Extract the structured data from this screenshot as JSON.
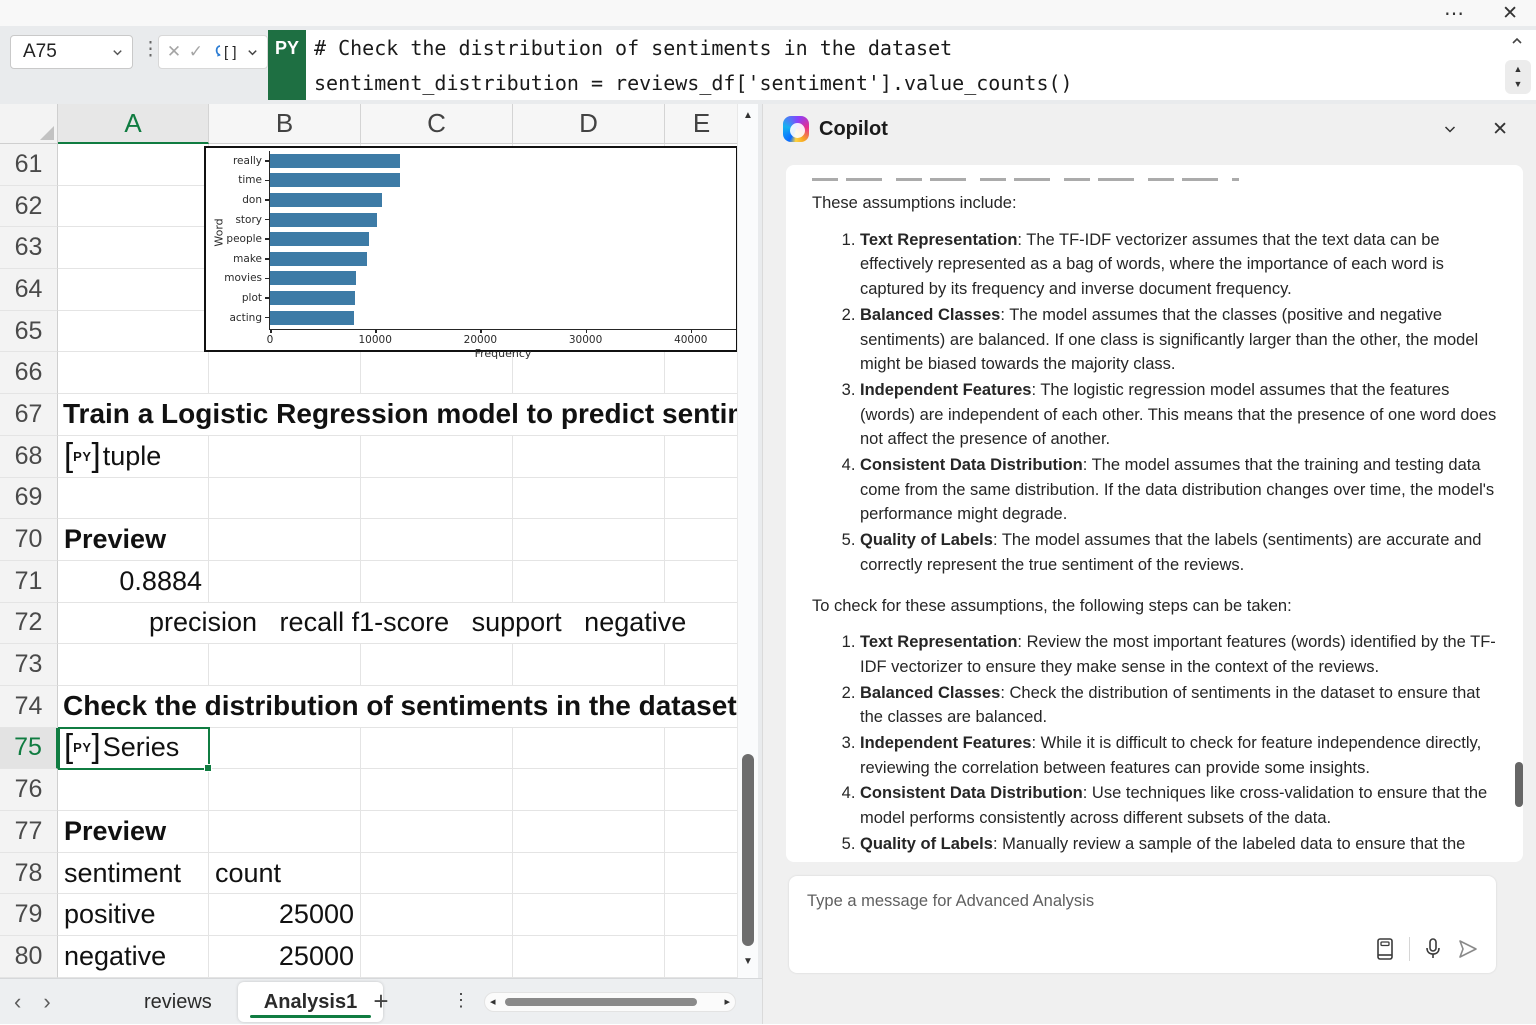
{
  "titlebar": {
    "more_icon": "⋯",
    "close_icon": "✕"
  },
  "formula_bar": {
    "name_box_value": "A75",
    "cancel_icon": "✕",
    "enter_icon": "✓",
    "language_badge": "PY",
    "code_lines": [
      "# Check the distribution of sentiments in the dataset",
      "sentiment_distribution = reviews_df['sentiment'].value_counts()"
    ]
  },
  "grid": {
    "column_headers": [
      "A",
      "B",
      "C",
      "D",
      "E"
    ],
    "selected_column": "A",
    "selected_row": 75,
    "selected_cell": "A75",
    "py_label": "PY",
    "rows": [
      {
        "n": 61
      },
      {
        "n": 62
      },
      {
        "n": 63
      },
      {
        "n": 64
      },
      {
        "n": 65
      },
      {
        "n": 66
      },
      {
        "n": 67,
        "overflow": {
          "text": "Train a Logistic Regression model to predict sentiments",
          "bold": true,
          "left": 63
        }
      },
      {
        "n": 68,
        "a": {
          "text": "tuple",
          "py": true
        }
      },
      {
        "n": 69
      },
      {
        "n": 70,
        "a": {
          "text": "Preview",
          "bold": true
        }
      },
      {
        "n": 71,
        "a": {
          "text": "0.8884",
          "align": "right"
        }
      },
      {
        "n": 72,
        "overflow": {
          "text": "precision   recall f1-score   support   negative",
          "bold": false,
          "left": 149
        }
      },
      {
        "n": 73
      },
      {
        "n": 74,
        "overflow": {
          "text": "Check the distribution of sentiments in the dataset",
          "bold": true,
          "left": 63
        }
      },
      {
        "n": 75,
        "a": {
          "text": "Series",
          "py": true
        },
        "selected": true
      },
      {
        "n": 76
      },
      {
        "n": 77,
        "a": {
          "text": "Preview",
          "bold": true
        }
      },
      {
        "n": 78,
        "a": {
          "text": "sentiment"
        },
        "b": {
          "text": "count"
        }
      },
      {
        "n": 79,
        "a": {
          "text": "positive"
        },
        "b": {
          "text": "25000",
          "align": "right"
        }
      },
      {
        "n": 80,
        "a": {
          "text": "negative"
        },
        "b": {
          "text": "25000",
          "align": "right"
        }
      }
    ]
  },
  "chart_data": {
    "type": "bar",
    "orientation": "horizontal",
    "categories": [
      "really",
      "time",
      "don",
      "story",
      "people",
      "make",
      "movies",
      "plot",
      "acting"
    ],
    "values": [
      12400,
      12380,
      10600,
      10200,
      9450,
      9200,
      8150,
      8050,
      7950
    ],
    "title": "",
    "xlabel": "Frequency",
    "ylabel": "Word",
    "xticks": [
      0,
      10000,
      20000,
      30000,
      40000
    ],
    "xlim": [
      0,
      44300
    ],
    "bar_color": "#3d7ba6",
    "clipped_top": true
  },
  "sheet_tabs": {
    "tabs": [
      {
        "label": "reviews",
        "active": false
      },
      {
        "label": "Analysis1",
        "active": true
      }
    ],
    "add_icon": "+",
    "menu_icon": "⋮",
    "nav_left_icon": "‹",
    "nav_right_icon": "›"
  },
  "copilot": {
    "title": "Copilot",
    "intro": "These assumptions include:",
    "assumptions": [
      {
        "term": "Text Representation",
        "text": "The TF-IDF vectorizer assumes that the text data can be effectively represented as a bag of words, where the importance of each word is captured by its frequency and inverse document frequency."
      },
      {
        "term": "Balanced Classes",
        "text": "The model assumes that the classes (positive and negative sentiments) are balanced. If one class is significantly larger than the other, the model might be biased towards the majority class."
      },
      {
        "term": "Independent Features",
        "text": "The logistic regression model assumes that the features (words) are independent of each other. This means that the presence of one word does not affect the presence of another."
      },
      {
        "term": "Consistent Data Distribution",
        "text": "The model assumes that the training and testing data come from the same distribution. If the data distribution changes over time, the model's performance might degrade."
      },
      {
        "term": "Quality of Labels",
        "text": "The model assumes that the labels (sentiments) are accurate and correctly represent the true sentiment of the reviews."
      }
    ],
    "check_intro": "To check for these assumptions, the following steps can be taken:",
    "checks": [
      {
        "term": "Text Representation",
        "text": "Review the most important features (words) identified by the TF-IDF vectorizer to ensure they make sense in the context of the reviews."
      },
      {
        "term": "Balanced Classes",
        "text": "Check the distribution of sentiments in the dataset to ensure that the classes are balanced."
      },
      {
        "term": "Independent Features",
        "text": "While it is difficult to check for feature independence directly, reviewing the correlation between features can provide some insights."
      },
      {
        "term": "Consistent Data Distribution",
        "text": "Use techniques like cross-validation to ensure that the model performs consistently across different subsets of the data."
      },
      {
        "term": "Quality of Labels",
        "text": "Manually review a sample of the labeled data to ensure that the labels are accurate."
      }
    ],
    "input_placeholder": "Type a message for Advanced Analysis"
  },
  "colors": {
    "accent_green": "#107C41",
    "py_badge_green": "#1e6f42",
    "bar_blue": "#3d7ba6"
  }
}
